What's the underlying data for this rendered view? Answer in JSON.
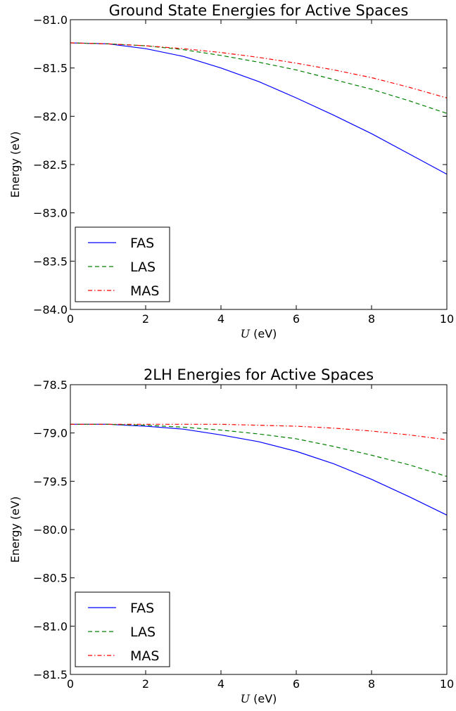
{
  "chart_data": [
    {
      "type": "line",
      "title": "Ground State Energies for Active Spaces",
      "xlabel_var": "U",
      "xlabel_unit": " (eV)",
      "ylabel": "Energy (eV)",
      "xlim": [
        0,
        10
      ],
      "ylim": [
        -84.0,
        -81.0
      ],
      "xticks": [
        "0",
        "2",
        "4",
        "6",
        "8",
        "10"
      ],
      "yticks": [
        "−84.0",
        "−83.5",
        "−83.0",
        "−82.5",
        "−82.0",
        "−81.5",
        "−81.0"
      ],
      "grid": false,
      "legend_position": "lower-left",
      "x": [
        0,
        1,
        2,
        3,
        4,
        5,
        6,
        7,
        8,
        9,
        10
      ],
      "series": [
        {
          "name": "FAS",
          "color": "#0000ff",
          "style": "solid",
          "values": [
            -81.24,
            -81.25,
            -81.3,
            -81.38,
            -81.5,
            -81.64,
            -81.81,
            -81.99,
            -82.18,
            -82.39,
            -82.6
          ]
        },
        {
          "name": "LAS",
          "color": "#008000",
          "style": "dashed",
          "values": [
            -81.24,
            -81.25,
            -81.27,
            -81.31,
            -81.37,
            -81.44,
            -81.52,
            -81.62,
            -81.72,
            -81.84,
            -81.97
          ]
        },
        {
          "name": "MAS",
          "color": "#ff0000",
          "style": "dashdot",
          "values": [
            -81.24,
            -81.25,
            -81.27,
            -81.3,
            -81.34,
            -81.39,
            -81.45,
            -81.52,
            -81.6,
            -81.7,
            -81.81
          ]
        }
      ]
    },
    {
      "type": "line",
      "title": "2LH Energies for Active Spaces",
      "xlabel_var": "U",
      "xlabel_unit": " (eV)",
      "ylabel": "Energy (eV)",
      "xlim": [
        0,
        10
      ],
      "ylim": [
        -81.5,
        -78.5
      ],
      "xticks": [
        "0",
        "2",
        "4",
        "6",
        "8",
        "10"
      ],
      "yticks": [
        "−81.5",
        "−81.0",
        "−80.5",
        "−80.0",
        "−79.5",
        "−79.0",
        "−78.5"
      ],
      "grid": false,
      "legend_position": "lower-left",
      "x": [
        0,
        1,
        2,
        3,
        4,
        5,
        6,
        7,
        8,
        9,
        10
      ],
      "series": [
        {
          "name": "FAS",
          "color": "#0000ff",
          "style": "solid",
          "values": [
            -78.91,
            -78.91,
            -78.93,
            -78.96,
            -79.02,
            -79.09,
            -79.19,
            -79.32,
            -79.48,
            -79.66,
            -79.85
          ]
        },
        {
          "name": "LAS",
          "color": "#008000",
          "style": "dashed",
          "values": [
            -78.91,
            -78.91,
            -78.92,
            -78.94,
            -78.97,
            -79.01,
            -79.06,
            -79.14,
            -79.23,
            -79.33,
            -79.45
          ]
        },
        {
          "name": "MAS",
          "color": "#ff0000",
          "style": "dashdot",
          "values": [
            -78.91,
            -78.91,
            -78.91,
            -78.91,
            -78.91,
            -78.92,
            -78.93,
            -78.95,
            -78.98,
            -79.02,
            -79.07
          ]
        }
      ]
    }
  ]
}
